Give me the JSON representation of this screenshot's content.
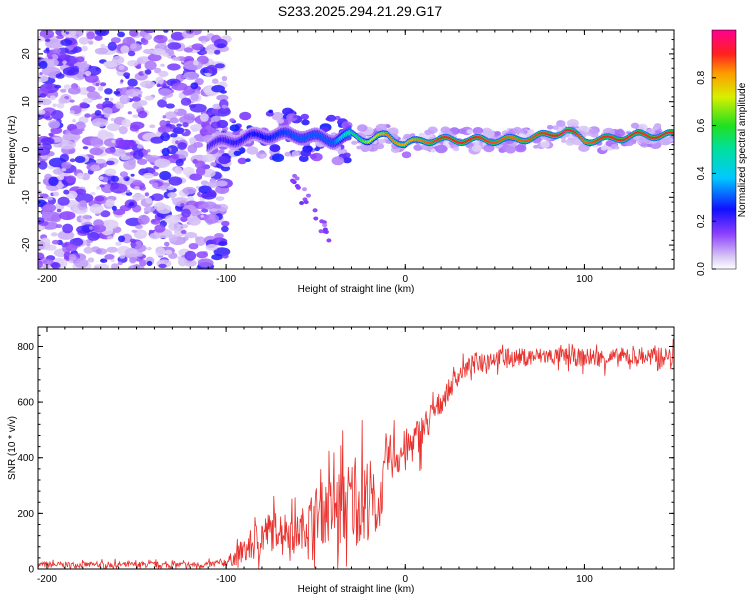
{
  "title": "S233.2025.294.21.29.G17",
  "chart_data": [
    {
      "type": "heatmap",
      "xlabel": "Height of straight line (km)",
      "ylabel": "Frequency (Hz)",
      "xlim": [
        -205,
        150
      ],
      "ylim": [
        -25,
        25
      ],
      "x_ticks": [
        -200,
        -100,
        0,
        100
      ],
      "x_tick_labels": [
        "-200",
        "-100",
        "0",
        "100"
      ],
      "y_ticks": [
        -20,
        -10,
        0,
        10,
        20
      ],
      "y_tick_labels": [
        "-20",
        "-10",
        "0",
        "10",
        "20"
      ],
      "colorbar": {
        "label": "Normalized spectral amplitude",
        "range": [
          0,
          1
        ],
        "ticks": [
          0.0,
          0.2,
          0.4,
          0.6,
          0.8
        ],
        "tick_labels": [
          "0.0",
          "0.2",
          "0.4",
          "0.6",
          "0.8"
        ]
      },
      "description_points": {
        "noise_region_x": [
          -205,
          -100
        ],
        "ridge_x": [
          -110,
          -80,
          -60,
          -40,
          -30,
          -20,
          -10,
          0,
          10,
          20,
          40,
          60,
          80,
          90,
          100,
          110,
          130,
          150
        ],
        "ridge_freq": [
          1,
          3,
          3,
          2,
          3,
          2,
          3,
          1,
          2,
          2,
          2,
          2,
          3,
          4,
          2,
          2,
          3,
          3
        ],
        "ridge_amplitude": [
          0.2,
          0.25,
          0.3,
          0.3,
          0.5,
          0.7,
          0.85,
          0.8,
          0.85,
          0.9,
          0.9,
          0.85,
          0.9,
          0.95,
          0.85,
          0.9,
          0.9,
          0.9
        ]
      }
    },
    {
      "type": "line",
      "xlabel": "Height of straight line (km)",
      "ylabel": "SNR (10 * v/v)",
      "xlim": [
        -205,
        150
      ],
      "ylim": [
        0,
        870
      ],
      "x_ticks": [
        -200,
        -100,
        0,
        100
      ],
      "x_tick_labels": [
        "-200",
        "-100",
        "0",
        "100"
      ],
      "y_ticks": [
        0,
        200,
        400,
        600,
        800
      ],
      "y_tick_labels": [
        "0",
        "200",
        "400",
        "600",
        "800"
      ],
      "series": [
        {
          "name": "SNR",
          "color": "#e8302c",
          "x": [
            -205,
            -150,
            -110,
            -100,
            -90,
            -80,
            -70,
            -60,
            -50,
            -40,
            -30,
            -20,
            -15,
            -10,
            0,
            10,
            20,
            30,
            40,
            50,
            60,
            80,
            100,
            120,
            150
          ],
          "envelope": [
            15,
            15,
            15,
            25,
            60,
            120,
            150,
            130,
            200,
            210,
            240,
            260,
            200,
            400,
            420,
            500,
            600,
            700,
            750,
            760,
            760,
            765,
            760,
            760,
            765
          ],
          "jitter": [
            20,
            20,
            20,
            30,
            80,
            150,
            120,
            120,
            180,
            250,
            300,
            280,
            150,
            150,
            150,
            120,
            80,
            60,
            60,
            60,
            60,
            60,
            60,
            60,
            60
          ]
        }
      ]
    }
  ]
}
